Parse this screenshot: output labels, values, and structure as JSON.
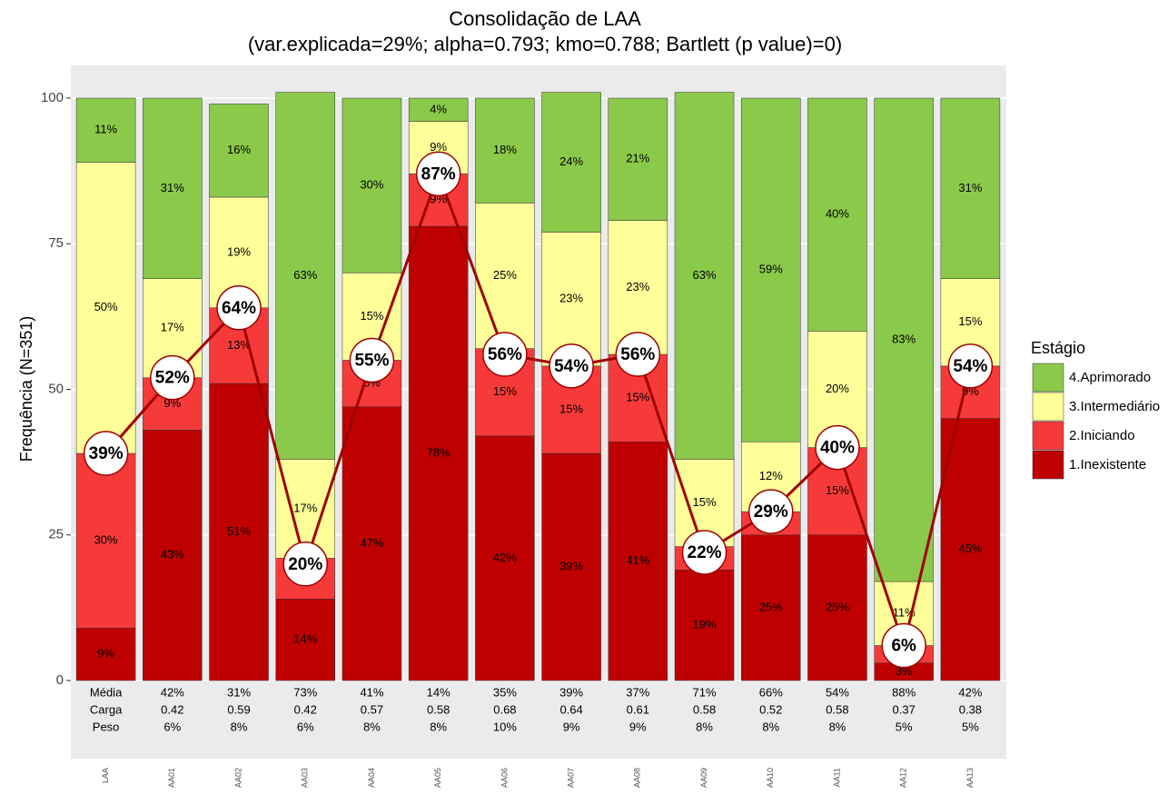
{
  "chart_data": {
    "type": "stacked_bar_line",
    "title": "Consolidação de LAA",
    "subtitle": "(var.explicada=29%; alpha=0.793; kmo=0.788; Bartlett (p value)=0)",
    "y_label": "Frequência (N=351)",
    "categories": [
      "LAA",
      "AA01",
      "AA02",
      "AA03",
      "AA04",
      "AA05",
      "AA06",
      "AA07",
      "AA08",
      "AA09",
      "AA10",
      "AA11",
      "AA12",
      "AA13"
    ],
    "ylim": [
      0,
      100
    ],
    "yticks": [
      0,
      25,
      50,
      75,
      100
    ],
    "grid": true,
    "legend_title": "Estágio",
    "legend_position": "right",
    "series": [
      {
        "name": "1.Inexistente",
        "color": "#bf0000",
        "values": [
          9,
          43,
          51,
          14,
          47,
          78,
          42,
          39,
          41,
          19,
          25,
          25,
          3,
          45
        ],
        "value_labels": [
          "9%",
          "43%",
          "51%",
          "14%",
          "47%",
          "78%",
          "42%",
          "39%",
          "41%",
          "19%",
          "25%",
          "25%",
          "3%",
          "45%"
        ]
      },
      {
        "name": "2.Iniciando",
        "color": "#f63a3a",
        "values": [
          30,
          9,
          13,
          7,
          8,
          9,
          15,
          15,
          15,
          4,
          4,
          15,
          3,
          9
        ],
        "value_labels": [
          "30%",
          "9%",
          "13%",
          "7%",
          "8%",
          "9%",
          "15%",
          "15%",
          "15%",
          "4%",
          "4%",
          "15%",
          "3%",
          "9%"
        ]
      },
      {
        "name": "3.Intermediário",
        "color": "#ffff99",
        "values": [
          50,
          17,
          19,
          17,
          15,
          9,
          25,
          23,
          23,
          15,
          12,
          20,
          11,
          15
        ],
        "value_labels": [
          "50%",
          "17%",
          "19%",
          "17%",
          "15%",
          "9%",
          "25%",
          "23%",
          "23%",
          "15%",
          "12%",
          "20%",
          "11%",
          "15%"
        ]
      },
      {
        "name": "4.Aprimorado",
        "color": "#8bc94a",
        "values": [
          11,
          31,
          16,
          63,
          30,
          4,
          18,
          24,
          21,
          63,
          59,
          40,
          83,
          31
        ],
        "value_labels": [
          "11%",
          "31%",
          "16%",
          "63%",
          "30%",
          "4%",
          "18%",
          "24%",
          "21%",
          "63%",
          "59%",
          "40%",
          "83%",
          "31%"
        ]
      }
    ],
    "line": {
      "color": "#a00000",
      "values": [
        39,
        52,
        64,
        20,
        55,
        87,
        56,
        54,
        56,
        22,
        29,
        40,
        6,
        54
      ],
      "value_labels": [
        "39%",
        "52%",
        "64%",
        "20%",
        "55%",
        "87%",
        "56%",
        "54%",
        "56%",
        "22%",
        "29%",
        "40%",
        "6%",
        "54%"
      ]
    },
    "table_rows": [
      {
        "label": "Média",
        "values": [
          "42%",
          "31%",
          "73%",
          "41%",
          "14%",
          "35%",
          "39%",
          "37%",
          "71%",
          "66%",
          "54%",
          "88%",
          "42%"
        ]
      },
      {
        "label": "Carga",
        "values": [
          "0.42",
          "0.59",
          "0.42",
          "0.57",
          "0.58",
          "0.68",
          "0.64",
          "0.61",
          "0.58",
          "0.52",
          "0.58",
          "0.37",
          "0.38"
        ]
      },
      {
        "label": "Peso",
        "values": [
          "6%",
          "8%",
          "6%",
          "8%",
          "8%",
          "10%",
          "9%",
          "9%",
          "8%",
          "8%",
          "8%",
          "5%",
          "5%"
        ]
      }
    ]
  }
}
